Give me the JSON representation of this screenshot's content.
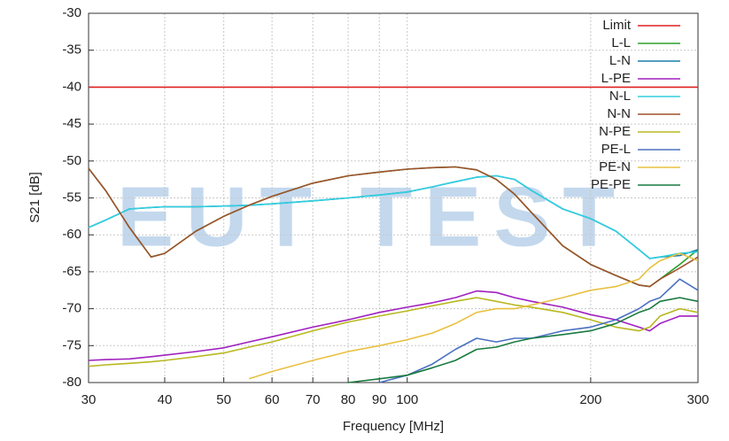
{
  "chart_data": {
    "type": "line",
    "watermark": "EUT TEST",
    "x_label": "Frequency [MHz]",
    "y_label": "S21 [dB]",
    "x_scale": "log",
    "grid": true,
    "legend": "top-right",
    "xlim": [
      30,
      300
    ],
    "ylim": [
      -80,
      -30
    ],
    "xticks": [
      30,
      40,
      50,
      60,
      70,
      80,
      90,
      100,
      200,
      300
    ],
    "yticks": [
      -30,
      -35,
      -40,
      -45,
      -50,
      -55,
      -60,
      -65,
      -70,
      -75,
      -80
    ],
    "x": [
      30,
      32,
      35,
      38,
      40,
      45,
      50,
      55,
      60,
      70,
      80,
      90,
      100,
      110,
      120,
      130,
      140,
      150,
      160,
      180,
      200,
      220,
      240,
      250,
      260,
      280,
      300
    ],
    "series": [
      {
        "name": "Limit",
        "color": "#e02020",
        "values": [
          -40,
          -40,
          -40,
          -40,
          -40,
          -40,
          -40,
          -40,
          -40,
          -40,
          -40,
          -40,
          -40,
          -40,
          -40,
          -40,
          -40,
          -40,
          -40,
          -40,
          -40,
          -40,
          -40,
          -40,
          -40,
          -40,
          -40
        ]
      },
      {
        "name": "L-L",
        "color": "#2ca02c",
        "values": [
          -51,
          -54,
          -59,
          -63,
          -62.5,
          -59.5,
          -57.5,
          -56,
          -54.8,
          -53,
          -52,
          -51.5,
          -51.1,
          -50.9,
          -50.8,
          -51.2,
          -52.5,
          -54.5,
          -57,
          -61.5,
          -64,
          -65.5,
          -66.8,
          -67,
          -66,
          -64,
          -62
        ]
      },
      {
        "name": "L-N",
        "color": "#1a7fa8",
        "values": [
          -59,
          -58,
          -56.5,
          -56.3,
          -56.2,
          -56.2,
          -56.1,
          -56,
          -55.8,
          -55.4,
          -55,
          -54.6,
          -54.2,
          -53.5,
          -52.8,
          -52.2,
          -52,
          -52.5,
          -54,
          -56.5,
          -57.8,
          -59.5,
          -62,
          -63.2,
          -63,
          -62.8,
          -62
        ]
      },
      {
        "name": "L-PE",
        "color": "#a020c0",
        "values": [
          -77,
          -76.9,
          -76.8,
          -76.5,
          -76.3,
          -75.8,
          -75.3,
          -74.5,
          -73.8,
          -72.5,
          -71.5,
          -70.5,
          -69.8,
          -69.2,
          -68.5,
          -67.6,
          -67.8,
          -68.5,
          -69,
          -69.8,
          -70.8,
          -71.5,
          -72.5,
          -73,
          -72,
          -71,
          -71
        ]
      },
      {
        "name": "N-L",
        "color": "#30d0e0",
        "values": [
          -59,
          -58,
          -56.5,
          -56.3,
          -56.2,
          -56.2,
          -56.1,
          -56,
          -55.8,
          -55.4,
          -55,
          -54.6,
          -54.2,
          -53.5,
          -52.8,
          -52.2,
          -52,
          -52.5,
          -54,
          -56.5,
          -57.8,
          -59.5,
          -62,
          -63.2,
          -63,
          -62.5,
          -62.3
        ]
      },
      {
        "name": "N-N",
        "color": "#a0522d",
        "values": [
          -51,
          -54,
          -59,
          -63,
          -62.5,
          -59.5,
          -57.5,
          -56,
          -54.8,
          -53,
          -52,
          -51.5,
          -51.1,
          -50.9,
          -50.8,
          -51.2,
          -52.5,
          -54.5,
          -57,
          -61.5,
          -64,
          -65.5,
          -66.8,
          -67,
          -66,
          -64.5,
          -63
        ]
      },
      {
        "name": "N-PE",
        "color": "#b8b820",
        "values": [
          -77.8,
          -77.6,
          -77.4,
          -77.2,
          -77,
          -76.5,
          -76,
          -75.2,
          -74.5,
          -73,
          -71.8,
          -71,
          -70.3,
          -69.6,
          -69,
          -68.5,
          -69,
          -69.5,
          -69.8,
          -70.5,
          -71.5,
          -72.5,
          -73,
          -72.5,
          -71,
          -70,
          -70.5
        ]
      },
      {
        "name": "PE-L",
        "color": "#4a70c0",
        "values": [
          null,
          null,
          null,
          null,
          null,
          null,
          null,
          null,
          null,
          null,
          null,
          -80,
          -79,
          -77.5,
          -75.5,
          -74,
          -74.5,
          -74,
          -74,
          -73,
          -72.5,
          -71.5,
          -70,
          -69,
          -68.5,
          -66,
          -67.5
        ]
      },
      {
        "name": "PE-N",
        "color": "#e8c040",
        "values": [
          null,
          null,
          null,
          null,
          null,
          null,
          null,
          -79.5,
          -78.5,
          -77,
          -75.8,
          -75,
          -74.2,
          -73.3,
          -72,
          -70.5,
          -70,
          -70,
          -69.5,
          -68.5,
          -67.5,
          -67,
          -66,
          -64.5,
          -63.5,
          -62.5,
          -63.5
        ]
      },
      {
        "name": "PE-PE",
        "color": "#1a7a40",
        "values": [
          null,
          null,
          null,
          null,
          null,
          null,
          null,
          null,
          null,
          null,
          -80,
          -79.5,
          -79,
          -78,
          -77,
          -75.5,
          -75.2,
          -74.5,
          -74,
          -73.5,
          -73,
          -72,
          -70.5,
          -70,
          -69,
          -68.5,
          -69
        ]
      }
    ]
  }
}
